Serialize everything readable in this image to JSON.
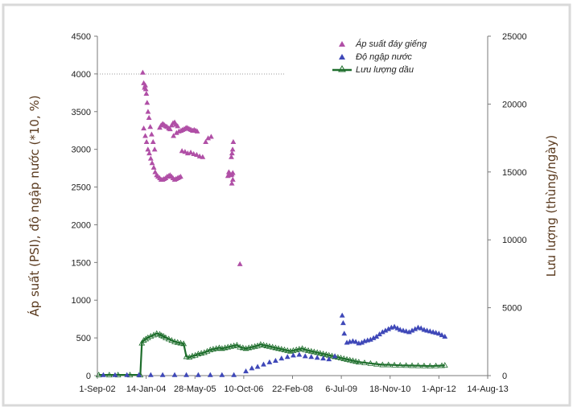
{
  "chart_data": {
    "type": "scatter",
    "title": "",
    "x_ticks": [
      "1-Sep-02",
      "14-Jan-04",
      "28-May-05",
      "10-Oct-06",
      "22-Feb-08",
      "6-Jul-09",
      "18-Nov-10",
      "1-Apr-12",
      "14-Aug-13"
    ],
    "xlim": [
      "2002-09-01",
      "2013-08-14"
    ],
    "ylabel_left": "Áp suất (PSI), độ ngập nước (*10, %)",
    "ylabel_right": "Lưu lượng (thùng/ngày)",
    "ylim_left": [
      0,
      4500
    ],
    "ylim_right": [
      0,
      25000
    ],
    "y_ticks_left": [
      "0",
      "500",
      "1000",
      "1500",
      "2000",
      "2500",
      "3000",
      "3500",
      "4000",
      "4500"
    ],
    "y_ticks_right": [
      "0",
      "5000",
      "10000",
      "15000",
      "20000",
      "25000"
    ],
    "legend_position": "top-right",
    "grid": false,
    "colors": {
      "pressure": "#b04fa6",
      "watercut": "#3f48b8",
      "oil": "#1e6e2c"
    },
    "series": [
      {
        "name": "Áp suất đáy giếng",
        "axis": "left",
        "marker": "triangle",
        "x": [
          "2003-12-10",
          "2003-12-20",
          "2003-12-28",
          "2004-01-05",
          "2004-01-10",
          "2004-01-16",
          "2004-01-24",
          "2004-02-02",
          "2004-02-12",
          "2004-02-25",
          "2004-03-10",
          "2004-03-25",
          "2004-04-10",
          "2003-12-20",
          "2004-01-05",
          "2004-01-18",
          "2004-02-01",
          "2004-02-15",
          "2004-03-01",
          "2004-03-15",
          "2004-04-01",
          "2004-04-15",
          "2004-05-01",
          "2004-05-15",
          "2004-06-01",
          "2004-06-15",
          "2004-07-01",
          "2004-07-15",
          "2004-08-01",
          "2004-08-15",
          "2004-09-01",
          "2004-09-15",
          "2004-10-01",
          "2004-10-15",
          "2004-11-01",
          "2004-11-15",
          "2004-12-01",
          "2004-12-15",
          "2005-01-01",
          "2004-06-01",
          "2004-06-15",
          "2004-07-01",
          "2004-07-15",
          "2004-08-01",
          "2004-08-15",
          "2004-09-01",
          "2004-09-15",
          "2004-10-01",
          "2004-10-15",
          "2004-11-01",
          "2004-11-15",
          "2004-12-01",
          "2004-10-20",
          "2004-11-20",
          "2004-12-15",
          "2005-01-05",
          "2005-01-20",
          "2005-02-05",
          "2005-02-20",
          "2005-03-05",
          "2005-03-20",
          "2005-04-05",
          "2005-04-20",
          "2005-05-05",
          "2005-05-20",
          "2005-06-05",
          "2005-06-20",
          "2005-01-15",
          "2005-02-15",
          "2005-03-15",
          "2005-04-15",
          "2005-05-15",
          "2005-06-15",
          "2005-07-15",
          "2005-08-15",
          "2005-09-15",
          "2005-10-10",
          "2005-11-10",
          "2006-05-01",
          "2006-05-10",
          "2006-05-20",
          "2006-06-01",
          "2006-06-10",
          "2006-06-20",
          "2006-06-05",
          "2006-06-12",
          "2006-06-18",
          "2006-06-25",
          "2006-06-10",
          "2006-06-20",
          "2006-09-01"
        ],
        "y": [
          4020,
          3880,
          3820,
          3850,
          3800,
          3740,
          3620,
          3500,
          3420,
          3300,
          3200,
          3100,
          3000,
          3280,
          3180,
          3100,
          3000,
          2950,
          2880,
          2820,
          2760,
          2700,
          2660,
          2640,
          2620,
          2600,
          2600,
          2610,
          2620,
          2640,
          2650,
          2660,
          2640,
          2620,
          2600,
          2610,
          2620,
          2630,
          2640,
          3290,
          3320,
          3340,
          3330,
          3310,
          3300,
          3280,
          3270,
          3320,
          3350,
          3360,
          3330,
          3310,
          3180,
          3220,
          3240,
          3250,
          3260,
          3270,
          3280,
          3290,
          3280,
          3270,
          3260,
          3250,
          3260,
          3250,
          3240,
          2980,
          2970,
          2950,
          2960,
          2940,
          2930,
          2910,
          2900,
          3100,
          3150,
          3170,
          2650,
          2700,
          2680,
          2660,
          2670,
          2690,
          2900,
          2950,
          3000,
          3100,
          2550,
          2600,
          1480
        ]
      },
      {
        "name": "Độ ngập nước",
        "axis": "left",
        "marker": "triangle",
        "x": [
          "2002-11-01",
          "2003-03-01",
          "2003-07-01",
          "2003-11-01",
          "2004-03-01",
          "2004-07-01",
          "2004-11-01",
          "2005-03-01",
          "2005-07-01",
          "2005-11-01",
          "2006-03-01",
          "2006-07-01",
          "2006-11-01",
          "2007-01-01",
          "2007-03-01",
          "2007-05-01",
          "2007-07-01",
          "2007-09-01",
          "2007-11-01",
          "2008-01-01",
          "2008-03-01",
          "2008-05-01",
          "2008-07-01",
          "2008-09-01",
          "2008-11-01",
          "2009-01-01",
          "2009-03-01",
          "2009-05-01",
          "2009-07-15",
          "2009-07-25",
          "2009-08-05",
          "2009-09-01",
          "2009-10-01",
          "2009-11-01",
          "2009-12-01",
          "2010-01-01",
          "2010-02-01",
          "2010-03-01",
          "2010-04-01",
          "2010-05-01",
          "2010-06-01",
          "2010-07-01",
          "2010-08-01",
          "2010-09-01",
          "2010-10-01",
          "2010-11-01",
          "2010-12-01",
          "2011-01-01",
          "2011-02-01",
          "2011-03-01",
          "2011-04-01",
          "2011-05-01",
          "2011-06-01",
          "2011-07-01",
          "2011-08-01",
          "2011-09-01",
          "2011-10-01",
          "2011-11-01",
          "2011-12-01",
          "2012-01-01",
          "2012-02-01",
          "2012-03-01",
          "2012-04-01",
          "2012-05-01",
          "2012-06-01"
        ],
        "y": [
          10,
          10,
          10,
          10,
          10,
          10,
          10,
          10,
          10,
          10,
          10,
          10,
          60,
          100,
          120,
          150,
          180,
          200,
          230,
          250,
          270,
          280,
          260,
          250,
          240,
          230,
          220,
          260,
          800,
          700,
          560,
          440,
          450,
          460,
          450,
          430,
          440,
          460,
          470,
          480,
          500,
          520,
          550,
          580,
          600,
          620,
          640,
          650,
          630,
          610,
          600,
          590,
          580,
          600,
          620,
          640,
          630,
          610,
          600,
          590,
          580,
          570,
          560,
          540,
          520
        ]
      },
      {
        "name": "Lưu lượng dầu",
        "axis": "right",
        "marker": "triangle-line",
        "x": [
          "2002-09-15",
          "2003-01-01",
          "2003-04-01",
          "2003-08-01",
          "2003-11-15",
          "2003-12-01",
          "2003-12-20",
          "2004-01-10",
          "2004-02-01",
          "2004-03-01",
          "2004-04-01",
          "2004-05-01",
          "2004-06-01",
          "2004-06-20",
          "2004-07-10",
          "2004-08-01",
          "2004-09-01",
          "2004-10-01",
          "2004-11-01",
          "2004-12-01",
          "2005-01-01",
          "2005-02-01",
          "2005-03-01",
          "2005-04-01",
          "2005-05-01",
          "2005-06-01",
          "2005-07-01",
          "2005-08-01",
          "2005-09-01",
          "2005-10-01",
          "2005-11-01",
          "2005-12-01",
          "2006-01-01",
          "2006-02-01",
          "2006-03-01",
          "2006-04-01",
          "2006-05-01",
          "2006-06-01",
          "2006-07-01",
          "2006-08-01",
          "2006-09-01",
          "2006-10-01",
          "2006-11-01",
          "2006-12-01",
          "2007-01-01",
          "2007-02-01",
          "2007-03-01",
          "2007-04-01",
          "2007-05-01",
          "2007-06-01",
          "2007-07-01",
          "2007-08-01",
          "2007-09-01",
          "2007-10-01",
          "2007-11-01",
          "2007-12-01",
          "2008-01-01",
          "2008-02-01",
          "2008-03-01",
          "2008-04-01",
          "2008-05-01",
          "2008-06-01",
          "2008-07-01",
          "2008-08-01",
          "2008-09-01",
          "2008-10-01",
          "2008-11-01",
          "2008-12-01",
          "2009-01-01",
          "2009-02-01",
          "2009-03-01",
          "2009-04-01",
          "2009-05-01",
          "2009-06-01",
          "2009-07-01",
          "2009-08-01",
          "2009-09-01",
          "2009-10-01",
          "2009-11-01",
          "2009-12-01",
          "2010-01-01",
          "2010-03-01",
          "2010-05-01",
          "2010-07-01",
          "2010-09-01",
          "2010-11-01",
          "2011-01-01",
          "2011-03-01",
          "2011-05-01",
          "2011-07-01",
          "2011-09-01",
          "2011-11-01",
          "2012-01-01",
          "2012-03-01",
          "2012-05-01",
          "2012-06-01"
        ],
        "y": [
          50,
          50,
          50,
          50,
          50,
          2400,
          2600,
          2700,
          2800,
          2900,
          3000,
          3100,
          3050,
          2950,
          2900,
          2800,
          2700,
          2600,
          2500,
          2450,
          2400,
          2350,
          1400,
          1350,
          1450,
          1500,
          1600,
          1650,
          1700,
          1800,
          1900,
          1950,
          2000,
          2050,
          2000,
          2050,
          2100,
          2150,
          2200,
          2250,
          2100,
          2050,
          2000,
          2050,
          2100,
          2150,
          2200,
          2300,
          2250,
          2200,
          2150,
          2100,
          2050,
          2000,
          1950,
          1900,
          1850,
          1800,
          1850,
          1900,
          1950,
          2000,
          1900,
          1850,
          1800,
          1750,
          1700,
          1650,
          1600,
          1550,
          1500,
          1450,
          1400,
          1350,
          1300,
          1250,
          1200,
          1150,
          1100,
          1050,
          1000,
          950,
          900,
          850,
          800,
          800,
          780,
          760,
          750,
          740,
          730,
          720,
          700,
          720,
          740,
          760
        ]
      }
    ]
  }
}
